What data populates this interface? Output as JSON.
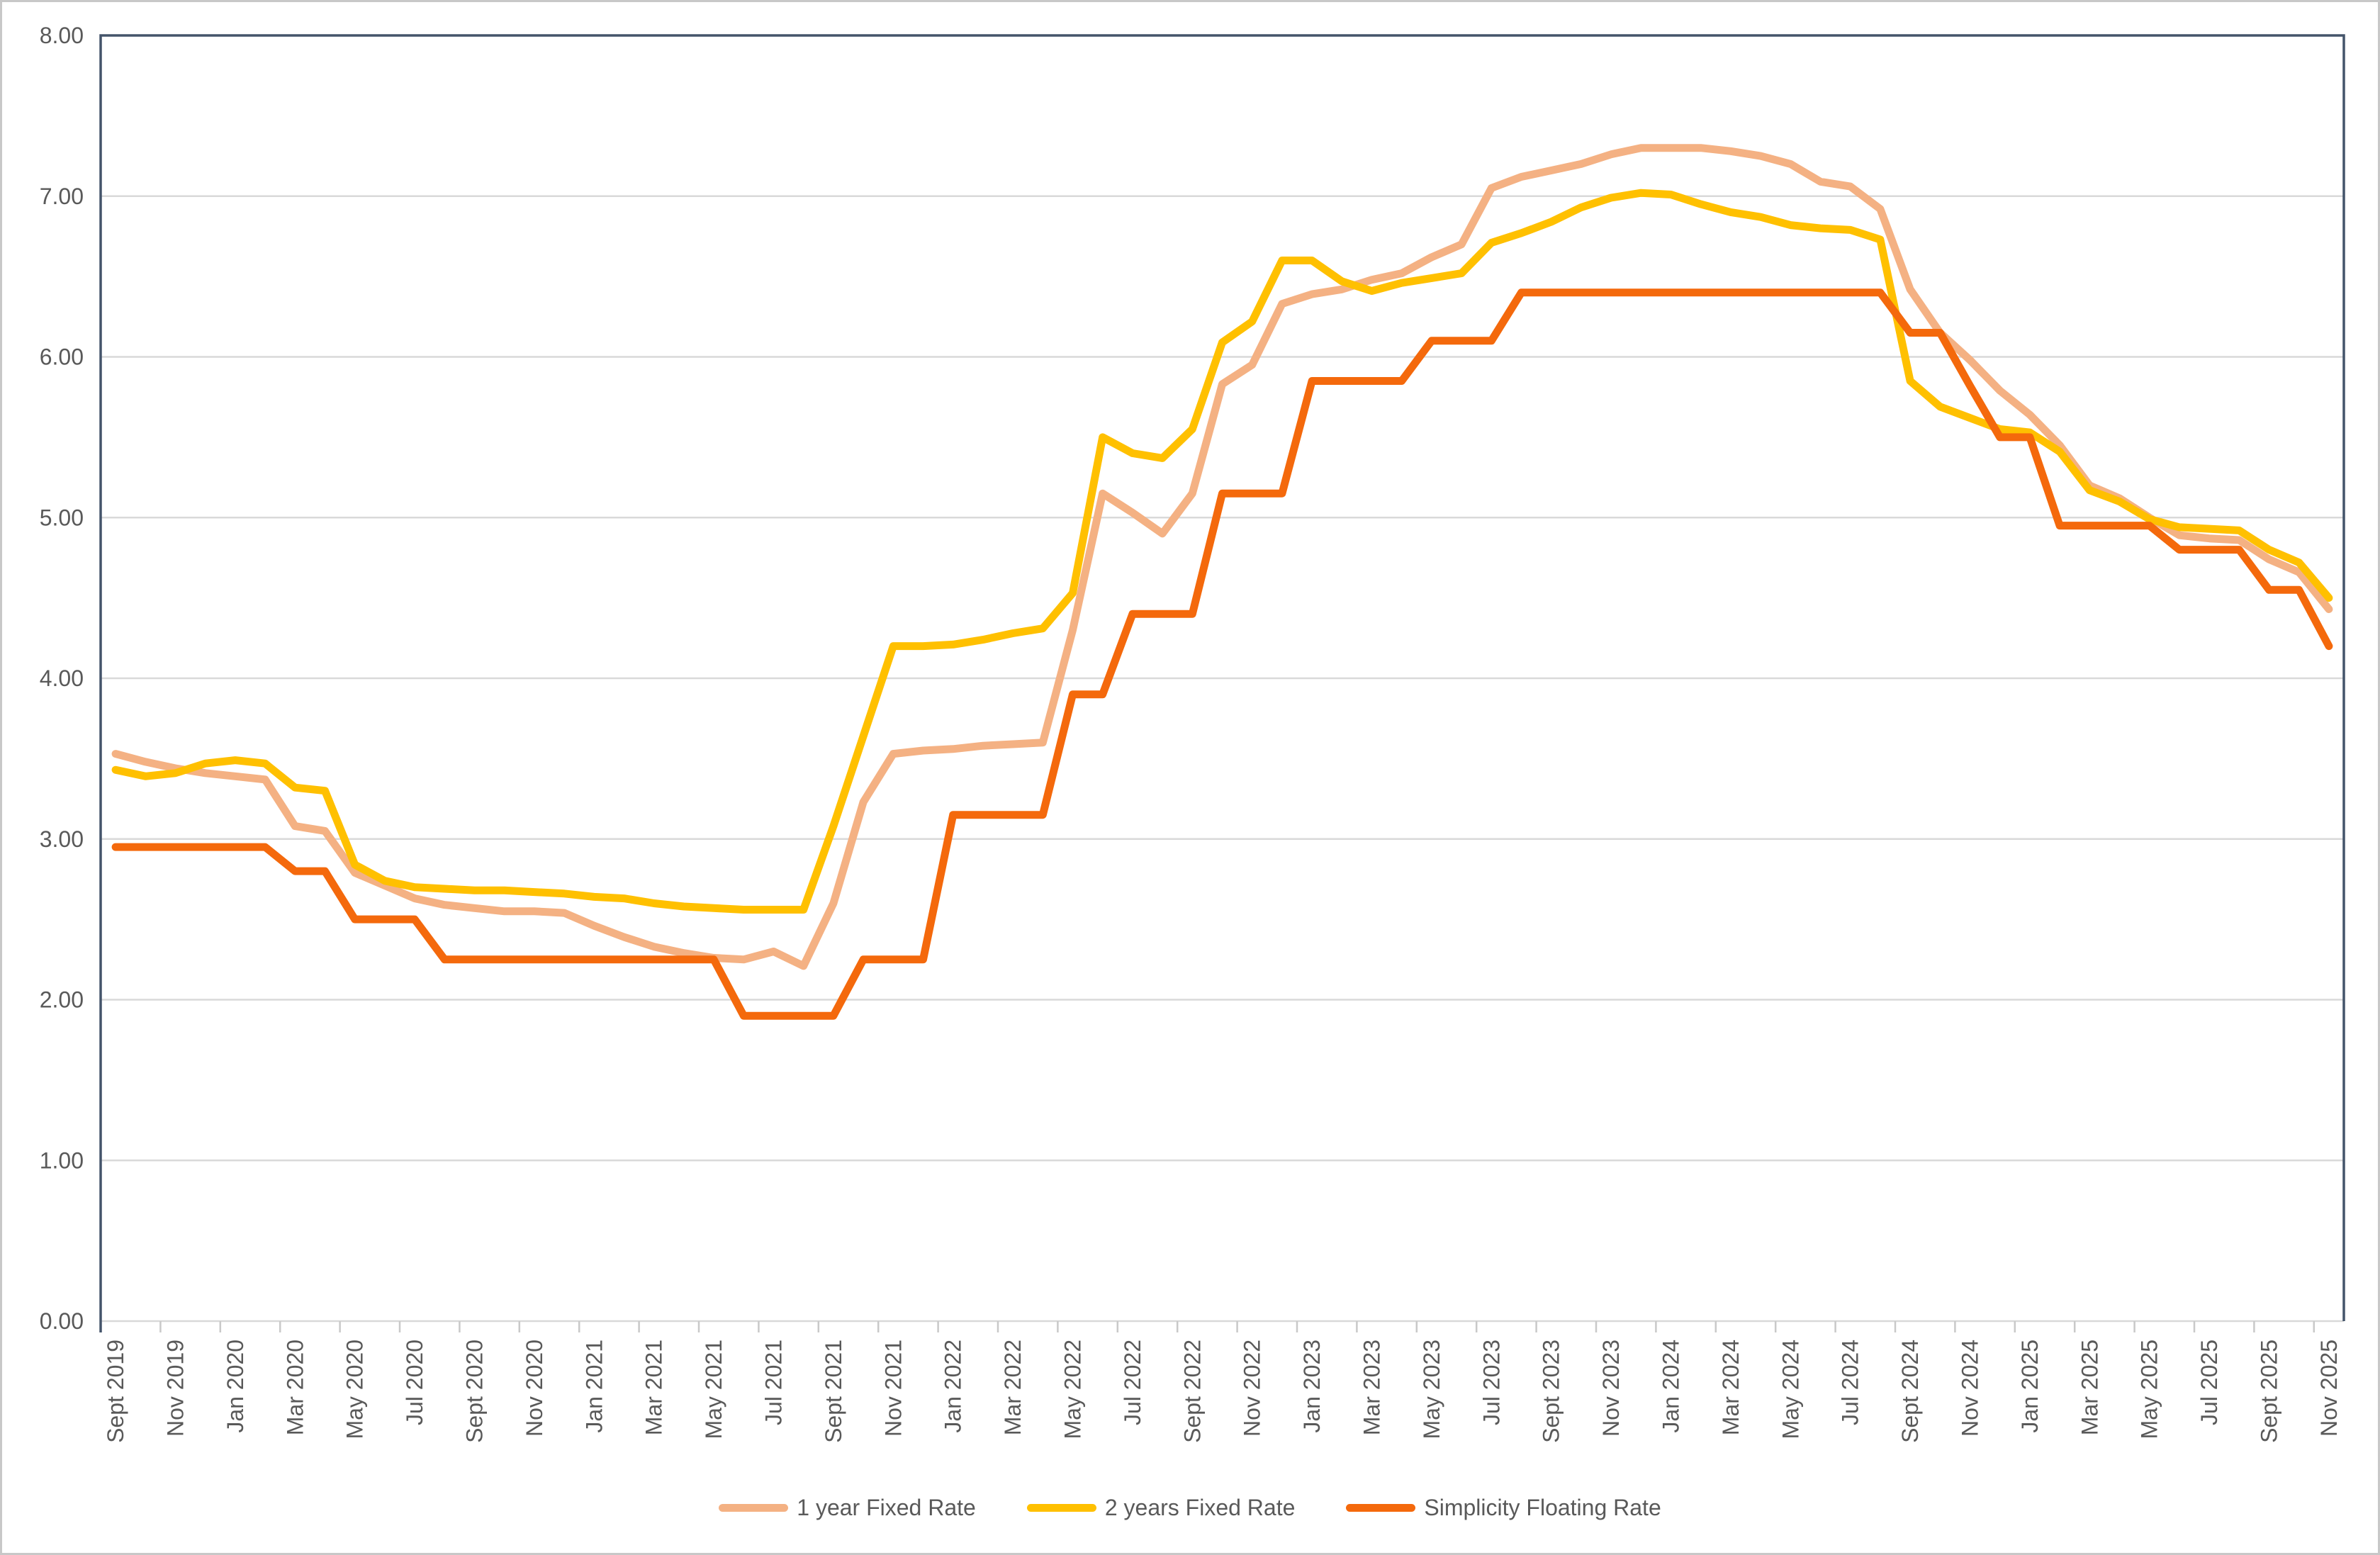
{
  "chart_data": {
    "type": "line",
    "title": "",
    "xlabel": "",
    "ylabel": "",
    "ylim": [
      0,
      8
    ],
    "grid": true,
    "legend_position": "bottom",
    "y_ticks": [
      "0.00",
      "1.00",
      "2.00",
      "3.00",
      "4.00",
      "5.00",
      "6.00",
      "7.00",
      "8.00"
    ],
    "n_points": 75,
    "x_label_step": 2,
    "x_labels": [
      "Sept 2019",
      "Nov 2019",
      "Jan 2020",
      "Mar 2020",
      "May 2020",
      "Jul 2020",
      "Sept 2020",
      "Nov 2020",
      "Jan 2021",
      "Mar 2021",
      "May 2021",
      "Jul 2021",
      "Sept 2021",
      "Nov 2021",
      "Jan 2022",
      "Mar 2022",
      "May 2022",
      "Jul 2022",
      "Sept 2022",
      "Nov 2022",
      "Jan 2023",
      "Mar 2023",
      "May 2023",
      "Jul 2023",
      "Sept 2023",
      "Nov 2023",
      "Jan 2024",
      "Mar 2024",
      "May 2024",
      "Jul 2024",
      "Sept 2024",
      "Nov 2024",
      "Jan 2025",
      "Mar 2025",
      "May 2025",
      "Jul 2025",
      "Sept 2025",
      "Nov 2025"
    ],
    "series": [
      {
        "name": "1 year Fixed Rate",
        "color": "#F4B183",
        "values": [
          3.53,
          3.48,
          3.44,
          3.41,
          3.39,
          3.37,
          3.08,
          3.05,
          2.79,
          2.71,
          2.63,
          2.59,
          2.57,
          2.55,
          2.55,
          2.54,
          2.46,
          2.39,
          2.33,
          2.29,
          2.26,
          2.25,
          2.3,
          2.21,
          2.6,
          3.23,
          3.53,
          3.55,
          3.56,
          3.58,
          3.59,
          3.6,
          4.3,
          5.15,
          5.03,
          4.9,
          5.15,
          5.83,
          5.95,
          6.33,
          6.39,
          6.42,
          6.48,
          6.52,
          6.62,
          6.7,
          7.05,
          7.12,
          7.16,
          7.2,
          7.26,
          7.3,
          7.3,
          7.3,
          7.28,
          7.25,
          7.2,
          7.09,
          7.06,
          6.92,
          6.42,
          6.15,
          5.98,
          5.79,
          5.64,
          5.45,
          5.2,
          5.12,
          5.0,
          4.89,
          4.87,
          4.86,
          4.74,
          4.66,
          4.43
        ]
      },
      {
        "name": "2 years Fixed Rate",
        "color": "#FFC000",
        "values": [
          3.43,
          3.39,
          3.41,
          3.47,
          3.49,
          3.47,
          3.32,
          3.3,
          2.84,
          2.74,
          2.7,
          2.69,
          2.68,
          2.68,
          2.67,
          2.66,
          2.64,
          2.63,
          2.6,
          2.58,
          2.57,
          2.56,
          2.56,
          2.56,
          3.08,
          3.64,
          4.2,
          4.2,
          4.21,
          4.24,
          4.28,
          4.31,
          4.53,
          5.5,
          5.4,
          5.37,
          5.55,
          6.09,
          6.22,
          6.6,
          6.6,
          6.47,
          6.41,
          6.46,
          6.49,
          6.52,
          6.71,
          6.77,
          6.84,
          6.93,
          6.99,
          7.02,
          7.01,
          6.95,
          6.9,
          6.87,
          6.82,
          6.8,
          6.79,
          6.73,
          5.85,
          5.69,
          5.62,
          5.55,
          5.53,
          5.41,
          5.17,
          5.1,
          4.99,
          4.94,
          4.93,
          4.92,
          4.8,
          4.72,
          4.5
        ]
      },
      {
        "name": "Simplicity Floating Rate",
        "color": "#F4690C",
        "values": [
          2.95,
          2.95,
          2.95,
          2.95,
          2.95,
          2.95,
          2.8,
          2.8,
          2.5,
          2.5,
          2.5,
          2.25,
          2.25,
          2.25,
          2.25,
          2.25,
          2.25,
          2.25,
          2.25,
          2.25,
          2.25,
          1.9,
          1.9,
          1.9,
          1.9,
          2.25,
          2.25,
          2.25,
          3.15,
          3.15,
          3.15,
          3.15,
          3.9,
          3.9,
          4.4,
          4.4,
          4.4,
          5.15,
          5.15,
          5.15,
          5.85,
          5.85,
          5.85,
          5.85,
          6.1,
          6.1,
          6.1,
          6.4,
          6.4,
          6.4,
          6.4,
          6.4,
          6.4,
          6.4,
          6.4,
          6.4,
          6.4,
          6.4,
          6.4,
          6.4,
          6.15,
          6.15,
          5.82,
          5.5,
          5.5,
          4.95,
          4.95,
          4.95,
          4.95,
          4.8,
          4.8,
          4.8,
          4.55,
          4.55,
          4.2
        ]
      }
    ],
    "colors": {
      "gridline": "#D9D9D9",
      "plot_border": "#44546A",
      "axis_text": "#595959",
      "tick": "#C9C9C9",
      "background": "#FFFFFF"
    }
  }
}
